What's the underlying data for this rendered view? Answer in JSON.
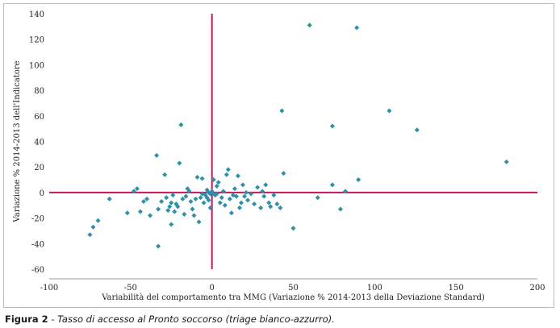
{
  "chart_data": {
    "type": "scatter",
    "xlabel": "Variabilità del comportamento tra MMG (Variazione % 2014-2013 della Deviazione Standard)",
    "ylabel": "Variazione % 2014-2013 dell'Indicatore",
    "xlim": [
      -100,
      200
    ],
    "ylim": [
      -60,
      140
    ],
    "x_ticks": [
      -100,
      -50,
      0,
      50,
      100,
      150,
      200
    ],
    "y_ticks": [
      -60,
      -40,
      -20,
      0,
      20,
      40,
      60,
      80,
      100,
      120,
      140
    ],
    "grid": false,
    "point_color": "#2f8fa6",
    "reference_line_color": "#c2185b",
    "reference_lines": {
      "x": 0,
      "y": 0
    },
    "points": [
      [
        60,
        131
      ],
      [
        89,
        129
      ],
      [
        109,
        64
      ],
      [
        43,
        64
      ],
      [
        74,
        52
      ],
      [
        126,
        49
      ],
      [
        -19,
        53
      ],
      [
        181,
        24
      ],
      [
        44,
        15
      ],
      [
        90,
        10
      ],
      [
        74,
        6
      ],
      [
        82,
        1
      ],
      [
        65,
        -4
      ],
      [
        79,
        -13
      ],
      [
        50,
        -28
      ],
      [
        -75,
        -33
      ],
      [
        -73,
        -27
      ],
      [
        -70,
        -22
      ],
      [
        -63,
        -5
      ],
      [
        -52,
        -16
      ],
      [
        -48,
        1
      ],
      [
        -46,
        3
      ],
      [
        -44,
        -15
      ],
      [
        -42,
        -7
      ],
      [
        -40,
        -5
      ],
      [
        -38,
        -18
      ],
      [
        -34,
        29
      ],
      [
        -33,
        -42
      ],
      [
        -33,
        -13
      ],
      [
        -31,
        -7
      ],
      [
        -29,
        14
      ],
      [
        -28,
        -4
      ],
      [
        -27,
        -14
      ],
      [
        -26,
        -11
      ],
      [
        -25,
        -8
      ],
      [
        -24,
        -2
      ],
      [
        -23,
        -15
      ],
      [
        -22,
        -9
      ],
      [
        -21,
        -11
      ],
      [
        -20,
        23
      ],
      [
        -18,
        -5
      ],
      [
        -17,
        -17
      ],
      [
        -16,
        -3
      ],
      [
        -14,
        1
      ],
      [
        -12,
        -13
      ],
      [
        -11,
        -18
      ],
      [
        -10,
        -5
      ],
      [
        -9,
        12
      ],
      [
        -8,
        -23
      ],
      [
        -7,
        -4
      ],
      [
        -6,
        11
      ],
      [
        -5,
        -8
      ],
      [
        -4,
        -2
      ],
      [
        -3,
        -4
      ],
      [
        -2,
        -6
      ],
      [
        -1,
        -12
      ],
      [
        -25,
        -25
      ],
      [
        -15,
        3
      ],
      [
        -13,
        -7
      ],
      [
        -6,
        -1
      ],
      [
        1,
        10
      ],
      [
        2,
        -2
      ],
      [
        3,
        5
      ],
      [
        4,
        8
      ],
      [
        5,
        -8
      ],
      [
        6,
        -4
      ],
      [
        7,
        1
      ],
      [
        8,
        -10
      ],
      [
        9,
        14
      ],
      [
        10,
        18
      ],
      [
        11,
        -5
      ],
      [
        12,
        -16
      ],
      [
        13,
        -2
      ],
      [
        14,
        3
      ],
      [
        15,
        -3
      ],
      [
        16,
        13
      ],
      [
        17,
        -12
      ],
      [
        18,
        -8
      ],
      [
        19,
        6
      ],
      [
        20,
        -3
      ],
      [
        21,
        0
      ],
      [
        22,
        -6
      ],
      [
        24,
        -1
      ],
      [
        26,
        -9
      ],
      [
        28,
        4
      ],
      [
        30,
        -12
      ],
      [
        31,
        1
      ],
      [
        32,
        -3
      ],
      [
        33,
        6
      ],
      [
        35,
        -8
      ],
      [
        36,
        -11
      ],
      [
        38,
        -2
      ],
      [
        40,
        -9
      ],
      [
        42,
        -12
      ],
      [
        -3,
        2
      ],
      [
        0,
        1
      ],
      [
        3,
        -1
      ],
      [
        -2,
        0
      ],
      [
        -1,
        -1
      ],
      [
        1,
        -1
      ]
    ]
  },
  "caption": {
    "label": "Figura 2",
    "text": " - Tasso di accesso al Pronto soccorso (triage bianco-azzurro)."
  }
}
